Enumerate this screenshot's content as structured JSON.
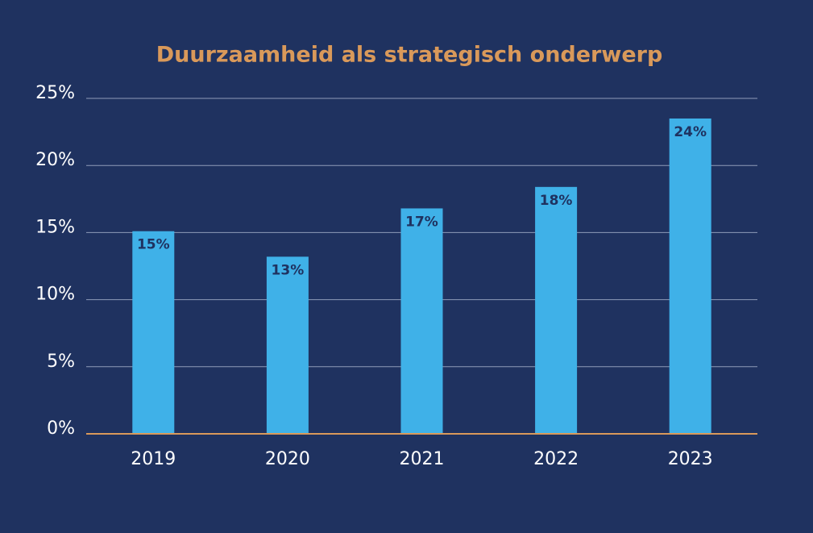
{
  "chart_data": {
    "type": "bar",
    "title": "Duurzaamheid als strategisch onderwerp",
    "categories": [
      "2019",
      "2020",
      "2021",
      "2022",
      "2023"
    ],
    "values": [
      15.1,
      13.2,
      16.8,
      18.4,
      23.5
    ],
    "value_labels": [
      "15%",
      "13%",
      "17%",
      "18%",
      "24%"
    ],
    "color": "#3fb1e8",
    "ylim": [
      0,
      25
    ],
    "yticks": [
      {
        "value": 0,
        "label": "0%"
      },
      {
        "value": 5,
        "label": "5%"
      },
      {
        "value": 10,
        "label": "10%"
      },
      {
        "value": 15,
        "label": "15%"
      },
      {
        "value": 20,
        "label": "20%"
      },
      {
        "value": 25,
        "label": "25%"
      }
    ],
    "grid": true
  }
}
